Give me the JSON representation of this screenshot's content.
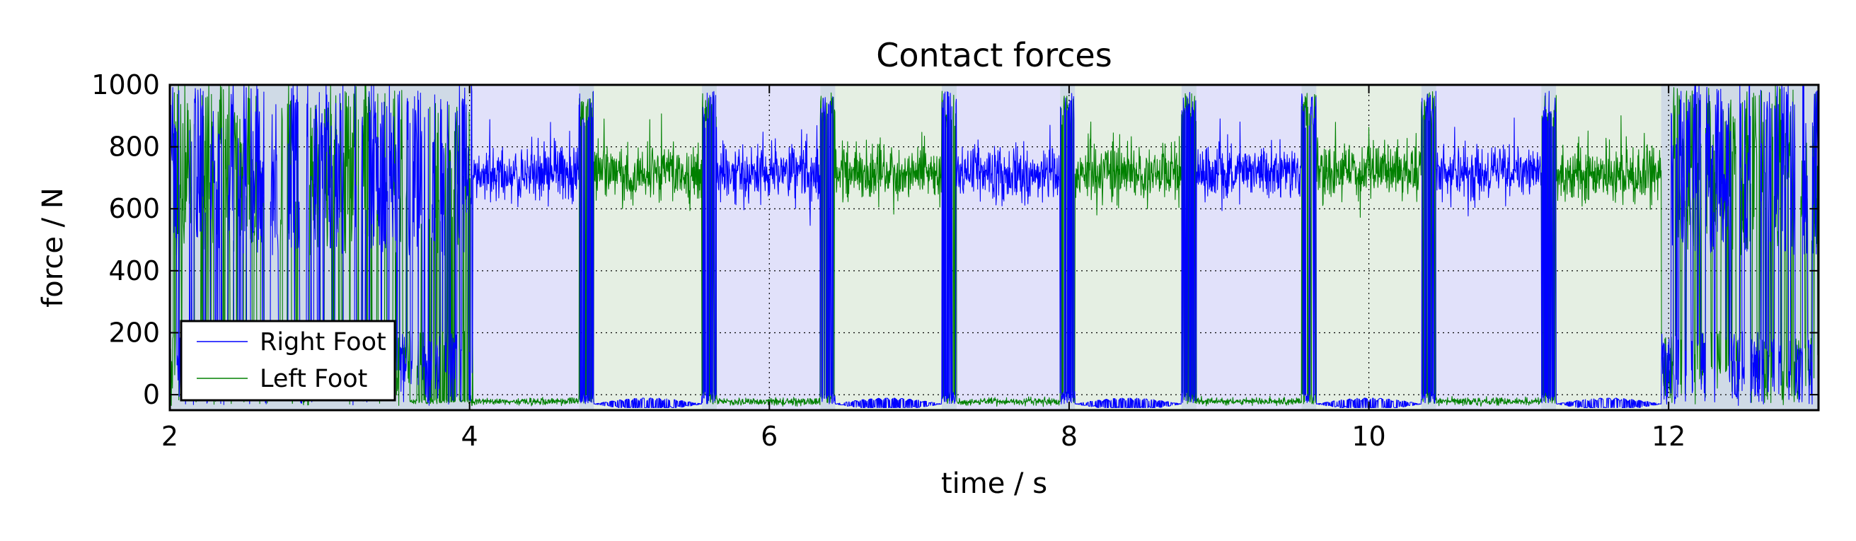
{
  "chart_data": {
    "type": "line",
    "title": "Contact forces",
    "xlabel": "time / s",
    "ylabel": "force / N",
    "xlim": [
      2,
      13
    ],
    "ylim": [
      -50,
      1000
    ],
    "xticks": [
      2,
      4,
      6,
      8,
      10,
      12
    ],
    "yticks": [
      0,
      200,
      400,
      600,
      800,
      1000
    ],
    "grid": true,
    "legend_position": "lower-left",
    "series": [
      {
        "name": "Right Foot",
        "color": "#0000ff"
      },
      {
        "name": "Left Foot",
        "color": "#008000"
      }
    ],
    "phases": [
      {
        "type": "double",
        "start": 2.0,
        "end": 4.02
      },
      {
        "type": "right",
        "start": 4.02,
        "end": 4.73
      },
      {
        "type": "double",
        "start": 4.73,
        "end": 4.83
      },
      {
        "type": "left",
        "start": 4.83,
        "end": 5.55
      },
      {
        "type": "double",
        "start": 5.55,
        "end": 5.65
      },
      {
        "type": "right",
        "start": 5.65,
        "end": 6.34
      },
      {
        "type": "double",
        "start": 6.34,
        "end": 6.44
      },
      {
        "type": "left",
        "start": 6.44,
        "end": 7.15
      },
      {
        "type": "double",
        "start": 7.15,
        "end": 7.25
      },
      {
        "type": "right",
        "start": 7.25,
        "end": 7.94
      },
      {
        "type": "double",
        "start": 7.94,
        "end": 8.04
      },
      {
        "type": "left",
        "start": 8.04,
        "end": 8.75
      },
      {
        "type": "double",
        "start": 8.75,
        "end": 8.85
      },
      {
        "type": "right",
        "start": 8.85,
        "end": 9.55
      },
      {
        "type": "double",
        "start": 9.55,
        "end": 9.65
      },
      {
        "type": "left",
        "start": 9.65,
        "end": 10.35
      },
      {
        "type": "double",
        "start": 10.35,
        "end": 10.45
      },
      {
        "type": "right",
        "start": 10.45,
        "end": 11.15
      },
      {
        "type": "double",
        "start": 11.15,
        "end": 11.25
      },
      {
        "type": "left",
        "start": 11.25,
        "end": 11.95
      },
      {
        "type": "double",
        "start": 11.95,
        "end": 13.0
      }
    ],
    "phase_colors": {
      "right": "#e1e1fa",
      "left": "#e5efe3",
      "double": "#cfdae6"
    }
  }
}
